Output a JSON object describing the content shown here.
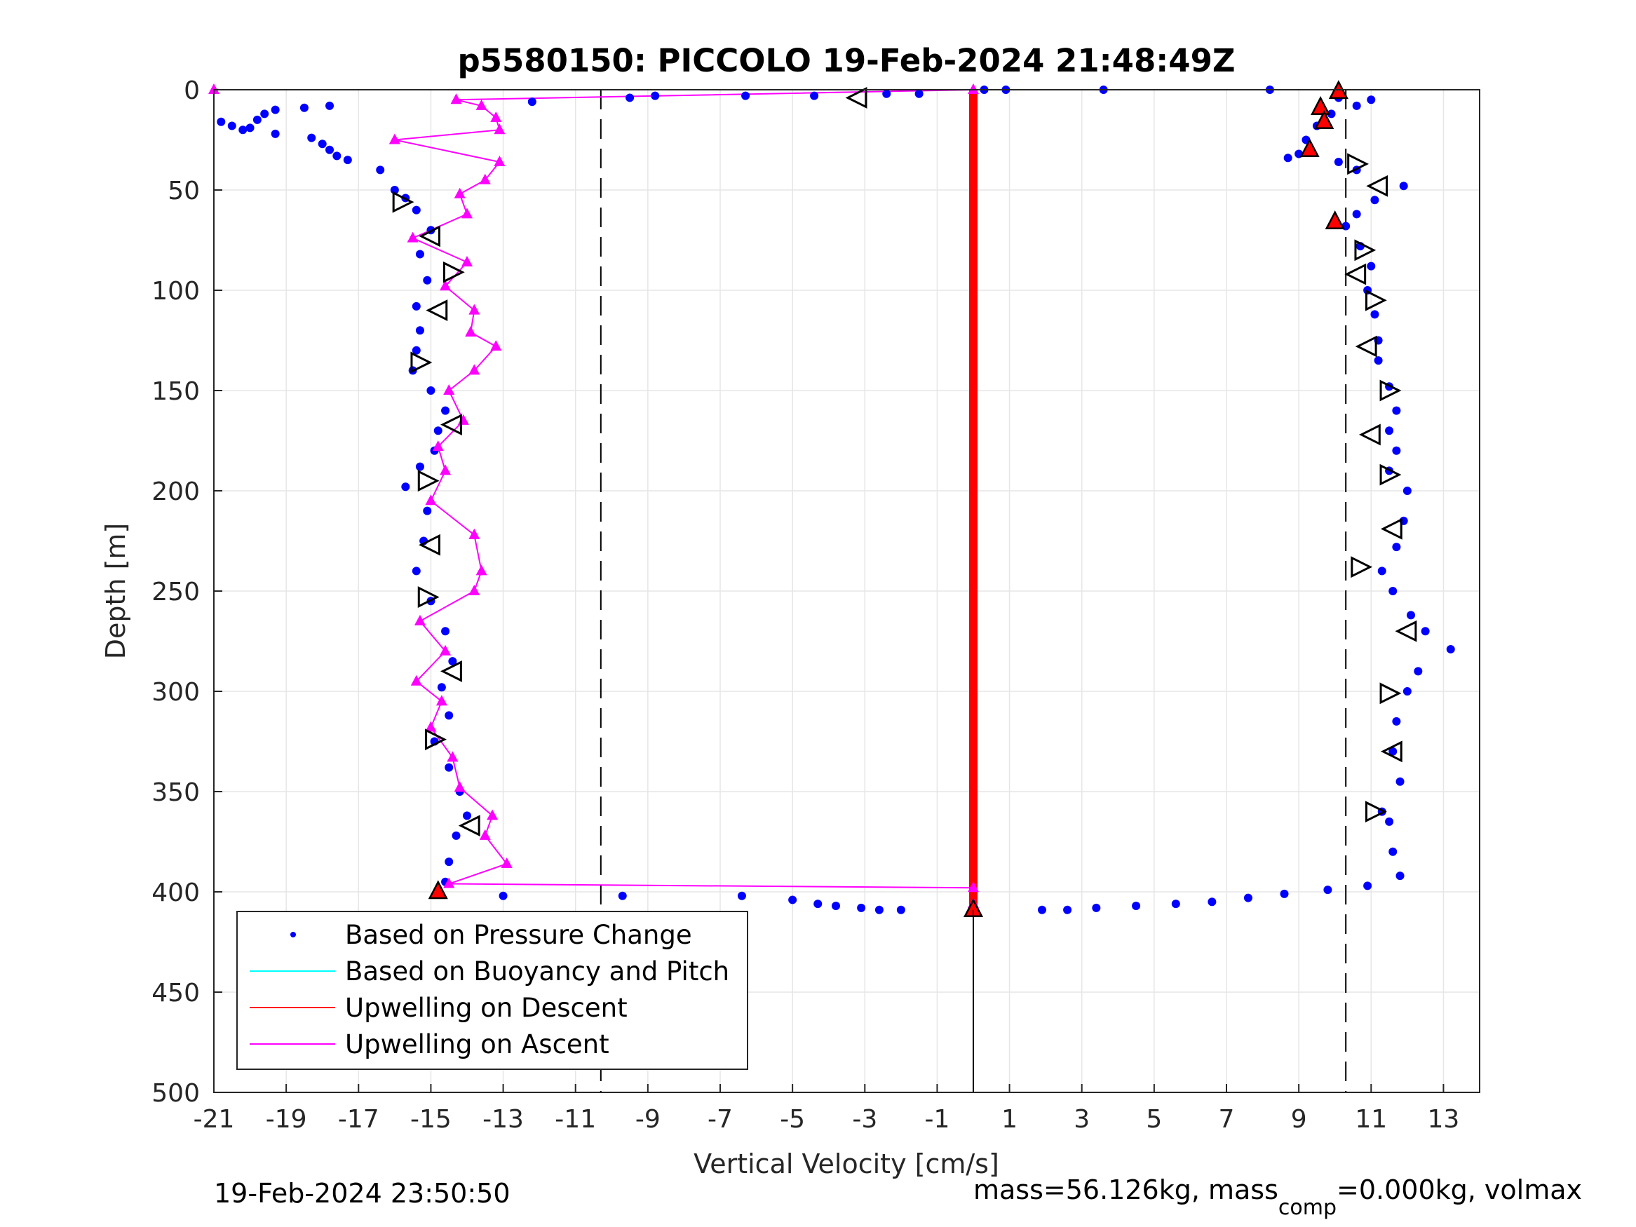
{
  "chart_data": {
    "type": "scatter",
    "title": "p5580150: PICCOLO 19-Feb-2024 21:48:49Z",
    "xlabel": "Vertical Velocity [cm/s]",
    "ylabel": "Depth [m]",
    "xlim": [
      -21,
      14
    ],
    "ylim": [
      0,
      500
    ],
    "y_reversed": true,
    "grid": true,
    "xticks": [
      -21,
      -19,
      -17,
      -15,
      -13,
      -11,
      -9,
      -7,
      -5,
      -3,
      -1,
      1,
      3,
      5,
      7,
      9,
      11,
      13
    ],
    "yticks": [
      0,
      50,
      100,
      150,
      200,
      250,
      300,
      350,
      400,
      450,
      500
    ],
    "dashed_lines_x": [
      -10.3,
      10.3
    ],
    "legend": {
      "placement": "bottom-left",
      "entries": [
        {
          "label": "Based on Pressure Change",
          "color": "#0000ff",
          "style": "dot"
        },
        {
          "label": "Based on Buoyancy and Pitch",
          "color": "#00ffff",
          "style": "line"
        },
        {
          "label": "Upwelling on Descent",
          "color": "#ff0000",
          "style": "line"
        },
        {
          "label": "Upwelling on Ascent",
          "color": "#ff00ff",
          "style": "line"
        }
      ]
    },
    "series": [
      {
        "name": "Based on Pressure Change",
        "color": "#0000ff",
        "marker": "dot",
        "points": [
          [
            -20.8,
            16
          ],
          [
            -20.5,
            18
          ],
          [
            -20.2,
            20
          ],
          [
            -20.0,
            19
          ],
          [
            -19.8,
            15
          ],
          [
            -19.6,
            12
          ],
          [
            -19.3,
            10
          ],
          [
            -19.3,
            22
          ],
          [
            -18.5,
            9
          ],
          [
            -17.8,
            8
          ],
          [
            -18.3,
            24
          ],
          [
            -18.0,
            27
          ],
          [
            -17.8,
            30
          ],
          [
            -17.6,
            33
          ],
          [
            -17.3,
            35
          ],
          [
            -16.4,
            40
          ],
          [
            -16.0,
            50
          ],
          [
            -15.7,
            54
          ],
          [
            -15.4,
            60
          ],
          [
            -15.0,
            70
          ],
          [
            -15.3,
            82
          ],
          [
            -15.1,
            95
          ],
          [
            -15.4,
            108
          ],
          [
            -15.3,
            120
          ],
          [
            -15.4,
            130
          ],
          [
            -15.5,
            140
          ],
          [
            -15.0,
            150
          ],
          [
            -14.6,
            160
          ],
          [
            -14.8,
            170
          ],
          [
            -14.9,
            180
          ],
          [
            -15.3,
            188
          ],
          [
            -15.7,
            198
          ],
          [
            -15.1,
            210
          ],
          [
            -15.2,
            225
          ],
          [
            -15.4,
            240
          ],
          [
            -15.0,
            255
          ],
          [
            -14.6,
            270
          ],
          [
            -14.4,
            285
          ],
          [
            -14.7,
            298
          ],
          [
            -14.5,
            312
          ],
          [
            -14.9,
            325
          ],
          [
            -14.5,
            338
          ],
          [
            -14.2,
            350
          ],
          [
            -14.0,
            362
          ],
          [
            -14.3,
            372
          ],
          [
            -14.5,
            385
          ],
          [
            -14.6,
            395
          ],
          [
            -14.8,
            400
          ],
          [
            -13.0,
            402
          ],
          [
            -9.7,
            402
          ],
          [
            -6.4,
            402
          ],
          [
            -5.0,
            404
          ],
          [
            -4.3,
            406
          ],
          [
            -3.8,
            407
          ],
          [
            -3.1,
            408
          ],
          [
            -2.6,
            409
          ],
          [
            -2.0,
            409
          ],
          [
            -12.2,
            6
          ],
          [
            -9.5,
            4
          ],
          [
            -8.8,
            3
          ],
          [
            -6.3,
            3
          ],
          [
            -4.4,
            3
          ],
          [
            -2.4,
            2
          ],
          [
            -1.5,
            2
          ],
          [
            0.3,
            0
          ],
          [
            0.9,
            0
          ],
          [
            3.6,
            0
          ],
          [
            1.9,
            409
          ],
          [
            2.6,
            409
          ],
          [
            3.4,
            408
          ],
          [
            4.5,
            407
          ],
          [
            5.6,
            406
          ],
          [
            6.6,
            405
          ],
          [
            7.6,
            403
          ],
          [
            8.6,
            401
          ],
          [
            9.8,
            399
          ],
          [
            10.9,
            397
          ],
          [
            11.8,
            392
          ],
          [
            11.6,
            380
          ],
          [
            11.5,
            365
          ],
          [
            11.3,
            360
          ],
          [
            11.8,
            345
          ],
          [
            11.6,
            330
          ],
          [
            11.7,
            315
          ],
          [
            12.0,
            300
          ],
          [
            12.3,
            290
          ],
          [
            13.2,
            279
          ],
          [
            12.5,
            270
          ],
          [
            12.1,
            262
          ],
          [
            11.6,
            250
          ],
          [
            11.3,
            240
          ],
          [
            11.7,
            228
          ],
          [
            11.9,
            215
          ],
          [
            12.0,
            200
          ],
          [
            11.5,
            190
          ],
          [
            11.7,
            180
          ],
          [
            11.5,
            170
          ],
          [
            11.7,
            160
          ],
          [
            11.5,
            148
          ],
          [
            11.2,
            135
          ],
          [
            11.2,
            125
          ],
          [
            11.1,
            112
          ],
          [
            10.9,
            100
          ],
          [
            11.0,
            88
          ],
          [
            10.7,
            78
          ],
          [
            10.3,
            68
          ],
          [
            10.6,
            62
          ],
          [
            11.1,
            55
          ],
          [
            11.9,
            48
          ],
          [
            10.6,
            40
          ],
          [
            10.1,
            36
          ],
          [
            9.0,
            32
          ],
          [
            8.7,
            34
          ],
          [
            9.2,
            25
          ],
          [
            9.5,
            18
          ],
          [
            9.9,
            12
          ],
          [
            10.6,
            8
          ],
          [
            11.0,
            5
          ],
          [
            10.1,
            4
          ],
          [
            8.2,
            0
          ]
        ]
      },
      {
        "name": "Upwelling on Descent",
        "color": "#ff0000",
        "style": "vertical band",
        "x": 0,
        "depth_range": [
          0,
          409
        ]
      },
      {
        "name": "Upwelling on Ascent",
        "color": "#ff00ff",
        "marker": "triangle",
        "points": [
          [
            -21.0,
            0
          ],
          [
            0.0,
            0
          ],
          [
            -14.3,
            5
          ],
          [
            -13.6,
            8
          ],
          [
            -13.2,
            14
          ],
          [
            -13.1,
            20
          ],
          [
            -16.0,
            25
          ],
          [
            -13.1,
            36
          ],
          [
            -13.5,
            45
          ],
          [
            -14.2,
            52
          ],
          [
            -14.0,
            62
          ],
          [
            -15.5,
            74
          ],
          [
            -14.0,
            86
          ],
          [
            -14.6,
            98
          ],
          [
            -13.8,
            110
          ],
          [
            -13.9,
            121
          ],
          [
            -13.2,
            128
          ],
          [
            -13.8,
            140
          ],
          [
            -14.5,
            150
          ],
          [
            -14.1,
            165
          ],
          [
            -14.8,
            178
          ],
          [
            -14.6,
            190
          ],
          [
            -15.0,
            205
          ],
          [
            -13.8,
            222
          ],
          [
            -13.6,
            240
          ],
          [
            -13.8,
            250
          ],
          [
            -15.3,
            265
          ],
          [
            -14.6,
            280
          ],
          [
            -15.4,
            295
          ],
          [
            -14.7,
            305
          ],
          [
            -15.0,
            318
          ],
          [
            -14.4,
            333
          ],
          [
            -14.2,
            348
          ],
          [
            -13.3,
            362
          ],
          [
            -13.5,
            372
          ],
          [
            -12.9,
            386
          ],
          [
            -14.5,
            396
          ],
          [
            0.0,
            398
          ],
          [
            0.0,
            406
          ]
        ]
      },
      {
        "name": "Vertical velocity estimates (open triangles)",
        "color": "#000000",
        "marker": "open-triangle",
        "points": [
          [
            -3.2,
            4
          ],
          [
            -15.8,
            56
          ],
          [
            -15.0,
            73
          ],
          [
            -14.4,
            91
          ],
          [
            -14.8,
            110
          ],
          [
            -15.3,
            136
          ],
          [
            -14.4,
            167
          ],
          [
            -15.1,
            195
          ],
          [
            -15.0,
            227
          ],
          [
            -15.1,
            253
          ],
          [
            -14.4,
            290
          ],
          [
            -14.9,
            324
          ],
          [
            -13.9,
            367
          ],
          [
            10.6,
            37
          ],
          [
            11.2,
            48
          ],
          [
            10.8,
            80
          ],
          [
            10.6,
            92
          ],
          [
            11.1,
            105
          ],
          [
            10.9,
            128
          ],
          [
            11.5,
            150
          ],
          [
            11.0,
            172
          ],
          [
            11.5,
            192
          ],
          [
            11.6,
            219
          ],
          [
            10.7,
            238
          ],
          [
            12.0,
            270
          ],
          [
            11.5,
            301
          ],
          [
            11.6,
            330
          ],
          [
            11.1,
            360
          ]
        ]
      },
      {
        "name": "Vertical velocity estimates (filled red triangles)",
        "color": "#ff0000",
        "marker": "filled-triangle",
        "points": [
          [
            10.1,
            1
          ],
          [
            9.6,
            9
          ],
          [
            9.7,
            16
          ],
          [
            9.3,
            30
          ],
          [
            10.0,
            66
          ],
          [
            -14.8,
            400
          ],
          [
            0.0,
            409
          ]
        ]
      }
    ],
    "annotations": {
      "timestamp": "19-Feb-2024 23:50:50",
      "mass_info": "mass=56.126kg, mass",
      "mass_sub": "comp",
      "mass_info_rest": "=0.000kg, volmax"
    }
  }
}
